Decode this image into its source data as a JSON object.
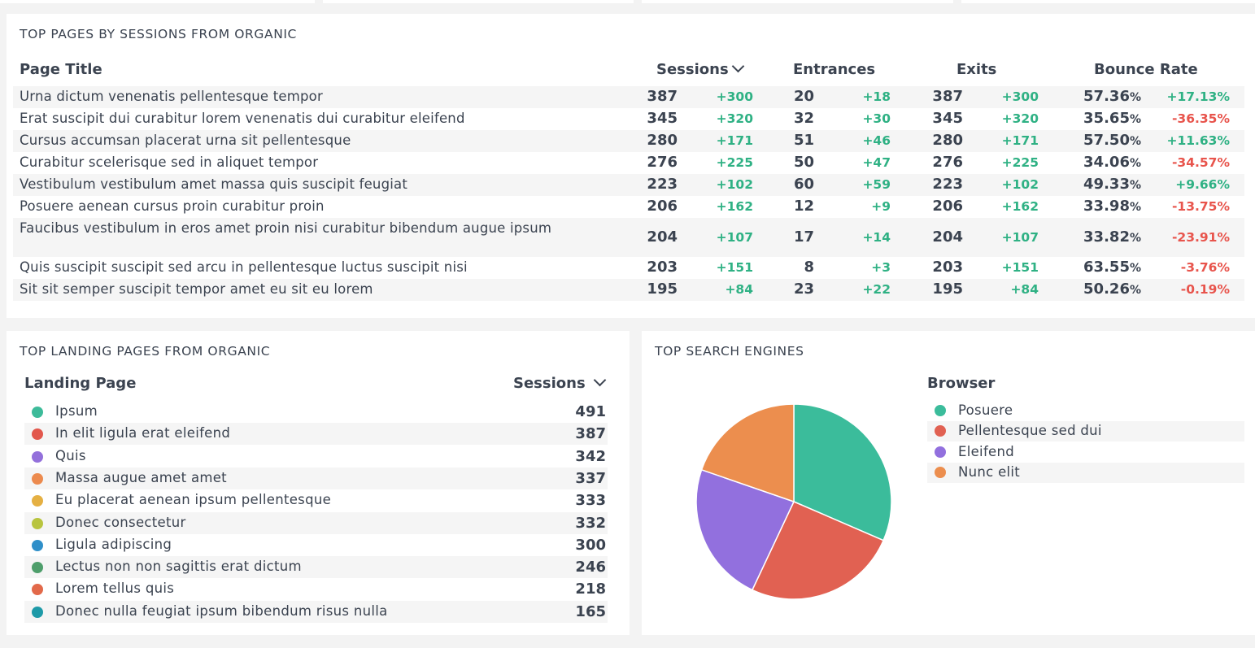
{
  "top_pages": {
    "title": "TOP PAGES BY SESSIONS FROM ORGANIC",
    "columns": {
      "page_title": "Page Title",
      "sessions": "Sessions",
      "entrances": "Entrances",
      "exits": "Exits",
      "bounce_rate": "Bounce Rate"
    },
    "rows": [
      {
        "title": "Urna dictum venenatis pellentesque tempor",
        "sessions": "387",
        "sessions_delta": "+300",
        "entrances": "20",
        "entrances_delta": "+18",
        "exits": "387",
        "exits_delta": "+300",
        "bounce": "57.36",
        "bounce_unit": "%",
        "bounce_delta": "+17.13%"
      },
      {
        "title": "Erat suscipit dui curabitur lorem venenatis dui curabitur eleifend",
        "sessions": "345",
        "sessions_delta": "+320",
        "entrances": "32",
        "entrances_delta": "+30",
        "exits": "345",
        "exits_delta": "+320",
        "bounce": "35.65",
        "bounce_unit": "%",
        "bounce_delta": "-36.35%"
      },
      {
        "title": "Cursus accumsan placerat urna sit pellentesque",
        "sessions": "280",
        "sessions_delta": "+171",
        "entrances": "51",
        "entrances_delta": "+46",
        "exits": "280",
        "exits_delta": "+171",
        "bounce": "57.50",
        "bounce_unit": "%",
        "bounce_delta": "+11.63%"
      },
      {
        "title": "Curabitur scelerisque sed in aliquet tempor",
        "sessions": "276",
        "sessions_delta": "+225",
        "entrances": "50",
        "entrances_delta": "+47",
        "exits": "276",
        "exits_delta": "+225",
        "bounce": "34.06",
        "bounce_unit": "%",
        "bounce_delta": "-34.57%"
      },
      {
        "title": "Vestibulum vestibulum amet massa quis suscipit feugiat",
        "sessions": "223",
        "sessions_delta": "+102",
        "entrances": "60",
        "entrances_delta": "+59",
        "exits": "223",
        "exits_delta": "+102",
        "bounce": "49.33",
        "bounce_unit": "%",
        "bounce_delta": "+9.66%"
      },
      {
        "title": "Posuere aenean cursus proin curabitur proin",
        "sessions": "206",
        "sessions_delta": "+162",
        "entrances": "12",
        "entrances_delta": "+9",
        "exits": "206",
        "exits_delta": "+162",
        "bounce": "33.98",
        "bounce_unit": "%",
        "bounce_delta": "-13.75%"
      },
      {
        "title": "Faucibus vestibulum in eros amet proin nisi curabitur bibendum augue ipsum",
        "sessions": "204",
        "sessions_delta": "+107",
        "entrances": "17",
        "entrances_delta": "+14",
        "exits": "204",
        "exits_delta": "+107",
        "bounce": "33.82",
        "bounce_unit": "%",
        "bounce_delta": "-23.91%"
      },
      {
        "title": "Quis suscipit suscipit sed arcu in pellentesque luctus suscipit nisi",
        "sessions": "203",
        "sessions_delta": "+151",
        "entrances": "8",
        "entrances_delta": "+3",
        "exits": "203",
        "exits_delta": "+151",
        "bounce": "63.55",
        "bounce_unit": "%",
        "bounce_delta": "-3.76%"
      },
      {
        "title": "Sit sit semper suscipit tempor amet eu sit eu lorem",
        "sessions": "195",
        "sessions_delta": "+84",
        "entrances": "23",
        "entrances_delta": "+22",
        "exits": "195",
        "exits_delta": "+84",
        "bounce": "50.26",
        "bounce_unit": "%",
        "bounce_delta": "-0.19%"
      }
    ]
  },
  "landing_pages": {
    "title": "TOP LANDING PAGES FROM ORGANIC",
    "columns": {
      "page": "Landing Page",
      "sessions": "Sessions"
    },
    "rows": [
      {
        "label": "Ipsum",
        "value": "491",
        "color": "#3dbb9a"
      },
      {
        "label": "In elit ligula erat eleifend",
        "value": "387",
        "color": "#e2574c"
      },
      {
        "label": "Quis",
        "value": "342",
        "color": "#9370db"
      },
      {
        "label": "Massa augue amet amet",
        "value": "337",
        "color": "#ec8a4e"
      },
      {
        "label": "Eu placerat aenean ipsum pellentesque",
        "value": "333",
        "color": "#e5b043"
      },
      {
        "label": "Donec consectetur",
        "value": "332",
        "color": "#b8c43e"
      },
      {
        "label": "Ligula adipiscing",
        "value": "300",
        "color": "#2f8fc9"
      },
      {
        "label": "Lectus non non sagittis erat dictum",
        "value": "246",
        "color": "#4e9e6b"
      },
      {
        "label": "Lorem tellus quis",
        "value": "218",
        "color": "#e2694a"
      },
      {
        "label": "Donec nulla feugiat ipsum bibendum risus nulla",
        "value": "165",
        "color": "#1e9aa8"
      }
    ]
  },
  "search_engines": {
    "title": "TOP SEARCH ENGINES",
    "legend_title": "Browser"
  },
  "chart_data": {
    "type": "pie",
    "title": "",
    "legend_title": "Browser",
    "legend_position": "right",
    "categories": [
      "Posuere",
      "Pellentesque sed dui",
      "Eleifend",
      "Nunc elit"
    ],
    "values": [
      31.5,
      25.5,
      23.3,
      19.7
    ],
    "colors": [
      "#3bbc9b",
      "#e16152",
      "#9270de",
      "#ec8e4e"
    ]
  }
}
